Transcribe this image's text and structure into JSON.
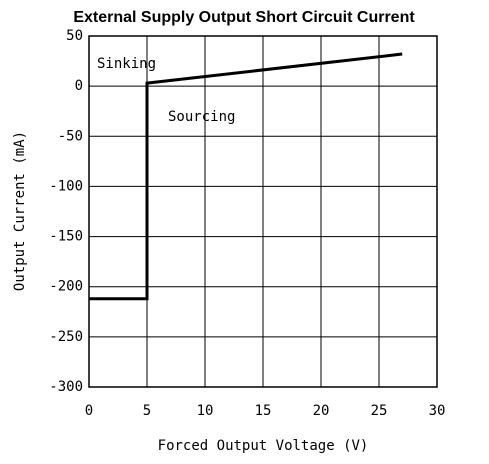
{
  "chart_data": {
    "type": "line",
    "title": "External Supply Output Short Circuit Current",
    "x_label": "Forced Output Voltage (V)",
    "y_label": "Output Current (mA)",
    "annotations": [
      "Sinking",
      "Sourcing"
    ],
    "x": [
      0,
      5,
      5,
      27
    ],
    "series": [
      {
        "name": "Output Current",
        "color": "#000000",
        "values": [
          -212,
          -212,
          3,
          32
        ]
      }
    ],
    "xlim": [
      0,
      30
    ],
    "xticks": [
      0,
      5,
      10,
      15,
      20,
      25,
      30
    ],
    "ylim": [
      -300,
      50
    ],
    "yticks": [
      -300,
      -250,
      -200,
      -150,
      -100,
      -50,
      0,
      50
    ],
    "grid": true
  }
}
